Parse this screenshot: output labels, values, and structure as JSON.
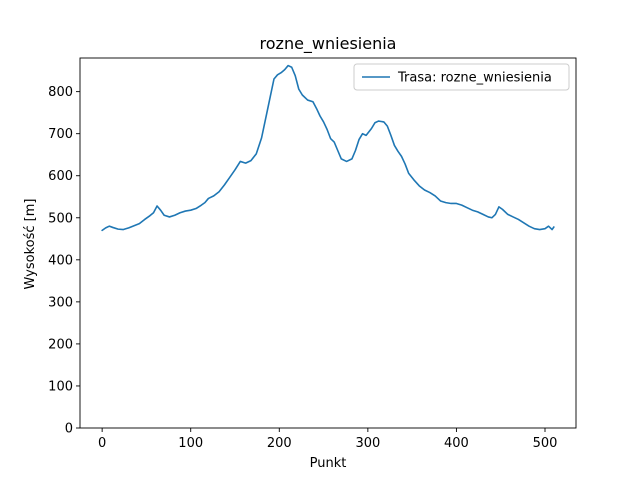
{
  "chart_data": {
    "type": "line",
    "title": "rozne_wniesienia",
    "xlabel": "Punkt",
    "ylabel": "Wysokość [m]",
    "xlim": [
      -25,
      535
    ],
    "ylim": [
      0,
      880
    ],
    "xticks": [
      0,
      100,
      200,
      300,
      400,
      500
    ],
    "yticks": [
      0,
      100,
      200,
      300,
      400,
      500,
      600,
      700,
      800
    ],
    "grid": false,
    "legend_position": "top-right",
    "series": [
      {
        "name": "Trasa: rozne_wniesienia",
        "color": "#1f77b4",
        "points": [
          [
            0,
            470
          ],
          [
            4,
            476
          ],
          [
            8,
            480
          ],
          [
            12,
            477
          ],
          [
            18,
            473
          ],
          [
            24,
            472
          ],
          [
            30,
            476
          ],
          [
            36,
            481
          ],
          [
            42,
            486
          ],
          [
            48,
            496
          ],
          [
            54,
            505
          ],
          [
            58,
            512
          ],
          [
            62,
            528
          ],
          [
            66,
            518
          ],
          [
            70,
            506
          ],
          [
            76,
            502
          ],
          [
            82,
            506
          ],
          [
            88,
            512
          ],
          [
            94,
            516
          ],
          [
            100,
            518
          ],
          [
            106,
            522
          ],
          [
            112,
            530
          ],
          [
            116,
            536
          ],
          [
            120,
            546
          ],
          [
            126,
            552
          ],
          [
            132,
            562
          ],
          [
            138,
            578
          ],
          [
            144,
            596
          ],
          [
            150,
            614
          ],
          [
            156,
            634
          ],
          [
            162,
            630
          ],
          [
            168,
            636
          ],
          [
            174,
            652
          ],
          [
            180,
            690
          ],
          [
            186,
            750
          ],
          [
            190,
            790
          ],
          [
            194,
            830
          ],
          [
            198,
            840
          ],
          [
            202,
            845
          ],
          [
            206,
            852
          ],
          [
            210,
            862
          ],
          [
            214,
            858
          ],
          [
            218,
            838
          ],
          [
            222,
            806
          ],
          [
            226,
            792
          ],
          [
            232,
            780
          ],
          [
            238,
            776
          ],
          [
            242,
            760
          ],
          [
            246,
            742
          ],
          [
            250,
            728
          ],
          [
            254,
            710
          ],
          [
            258,
            688
          ],
          [
            262,
            680
          ],
          [
            266,
            660
          ],
          [
            270,
            640
          ],
          [
            276,
            634
          ],
          [
            282,
            640
          ],
          [
            286,
            660
          ],
          [
            290,
            686
          ],
          [
            294,
            700
          ],
          [
            298,
            696
          ],
          [
            304,
            712
          ],
          [
            308,
            726
          ],
          [
            312,
            730
          ],
          [
            318,
            728
          ],
          [
            322,
            718
          ],
          [
            326,
            696
          ],
          [
            330,
            672
          ],
          [
            334,
            658
          ],
          [
            338,
            646
          ],
          [
            342,
            628
          ],
          [
            346,
            606
          ],
          [
            352,
            590
          ],
          [
            358,
            576
          ],
          [
            364,
            566
          ],
          [
            370,
            560
          ],
          [
            376,
            552
          ],
          [
            382,
            540
          ],
          [
            388,
            536
          ],
          [
            394,
            534
          ],
          [
            400,
            534
          ],
          [
            406,
            530
          ],
          [
            412,
            524
          ],
          [
            418,
            518
          ],
          [
            424,
            514
          ],
          [
            430,
            508
          ],
          [
            436,
            502
          ],
          [
            440,
            500
          ],
          [
            444,
            508
          ],
          [
            448,
            526
          ],
          [
            452,
            520
          ],
          [
            458,
            508
          ],
          [
            464,
            502
          ],
          [
            470,
            496
          ],
          [
            476,
            488
          ],
          [
            482,
            480
          ],
          [
            488,
            474
          ],
          [
            494,
            472
          ],
          [
            500,
            474
          ],
          [
            504,
            480
          ],
          [
            508,
            472
          ],
          [
            510,
            478
          ]
        ]
      }
    ]
  }
}
